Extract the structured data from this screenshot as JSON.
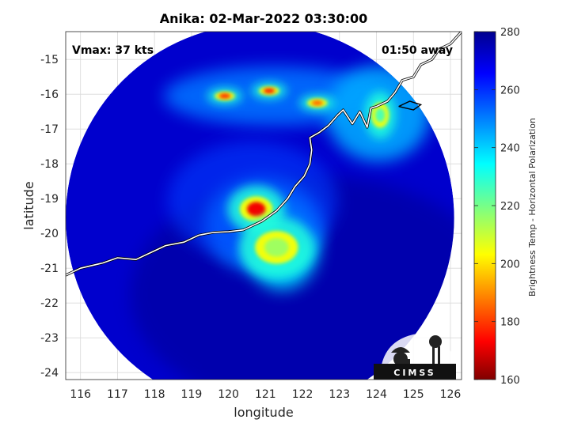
{
  "title": "Anika: 02-Mar-2022 03:30:00",
  "annotations": {
    "vmax": "Vmax: 37 kts",
    "time_away": "01:50 away"
  },
  "axes": {
    "xlabel": "longitude",
    "ylabel": "latitude",
    "xlim": [
      115.6,
      126.3
    ],
    "ylim": [
      -24.2,
      -14.2
    ],
    "xticks": [
      "116",
      "117",
      "118",
      "119",
      "120",
      "121",
      "122",
      "123",
      "124",
      "125",
      "126"
    ],
    "yticks": [
      "-15",
      "-16",
      "-17",
      "-18",
      "-19",
      "-20",
      "-21",
      "-22",
      "-23",
      "-24"
    ],
    "grid": true
  },
  "colorbar": {
    "label": "Brightness Temp - Horizontal Polarization",
    "ticks": [
      "280",
      "260",
      "240",
      "220",
      "200",
      "180",
      "160"
    ],
    "range": [
      160,
      280
    ],
    "colormap": "jet"
  },
  "swath": {
    "center_lon": 120.85,
    "center_lat": -19.55,
    "radius_deg": 5.25,
    "background_temp_k": 272
  },
  "features": [
    {
      "name": "storm-core",
      "lon": 120.75,
      "lat": -19.3,
      "min_temp_k": 172
    },
    {
      "name": "rainband-south",
      "lon": 121.3,
      "lat": -20.4,
      "min_temp_k": 215
    },
    {
      "name": "convection-north-1",
      "lon": 119.9,
      "lat": -16.05,
      "min_temp_k": 178
    },
    {
      "name": "convection-north-2",
      "lon": 121.1,
      "lat": -15.9,
      "min_temp_k": 176
    },
    {
      "name": "convection-north-3",
      "lon": 122.4,
      "lat": -16.25,
      "min_temp_k": 185
    },
    {
      "name": "convection-northeast",
      "lon": 124.1,
      "lat": -16.6,
      "min_temp_k": 225
    }
  ],
  "coastline_label": "Western Australia coastline",
  "logo": {
    "text": "CIMSS"
  },
  "colors": {
    "coast": "#ffffff",
    "grid": "#d9d9d9",
    "axis": "#262626"
  }
}
